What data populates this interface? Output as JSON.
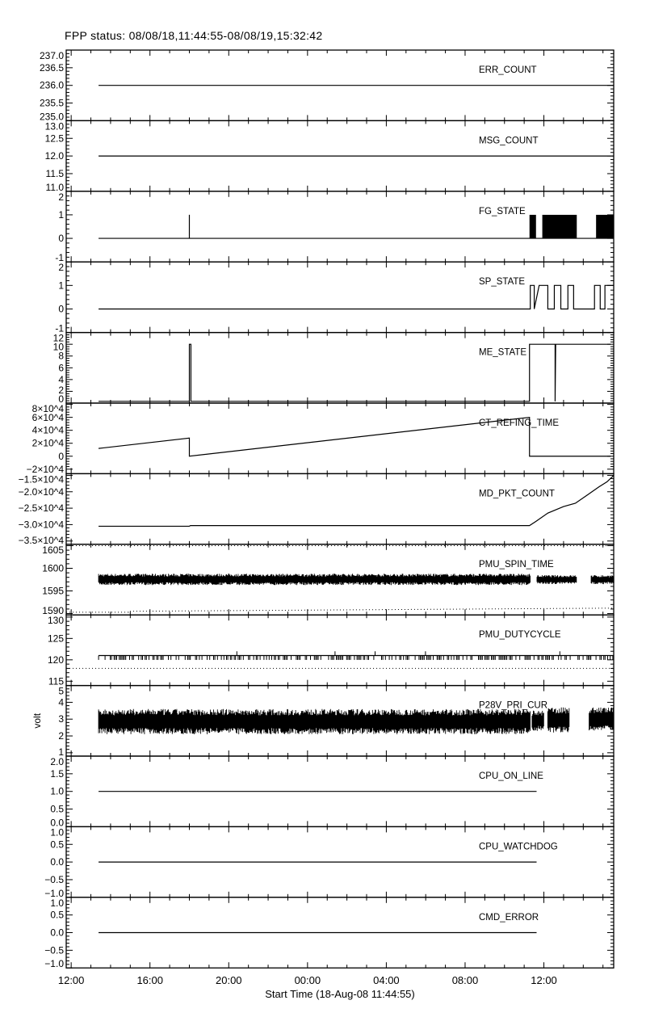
{
  "title": "FPP status: 08/08/18,11:44:55-08/08/19,15:32:42",
  "chart_data": {
    "type": "line",
    "layout": "13 stacked panels sharing a time axis",
    "x_unit": "hours since 18-Aug-08 00:00",
    "xlim": [
      11.748,
      39.545
    ],
    "xlabel": "Start Time (18-Aug-08 11:44:55)",
    "xticks": [
      {
        "v": 12,
        "t": "12:00"
      },
      {
        "v": 16,
        "t": "16:00"
      },
      {
        "v": 20,
        "t": "20:00"
      },
      {
        "v": 24,
        "t": "00:00"
      },
      {
        "v": 28,
        "t": "04:00"
      },
      {
        "v": 32,
        "t": "08:00"
      },
      {
        "v": 36,
        "t": "12:00"
      }
    ],
    "color": "#000000",
    "grid": false,
    "panels": [
      {
        "label": "ERR_COUNT",
        "ylim": [
          235,
          237
        ],
        "yticks": [
          {
            "v": 235,
            "t": "235.0"
          },
          {
            "v": 235.5,
            "t": "235.5"
          },
          {
            "v": 236,
            "t": "236.0"
          },
          {
            "v": 236.5,
            "t": "236.5"
          },
          {
            "v": 237,
            "t": "237.0"
          }
        ],
        "lines": [
          [
            [
              13.39,
              236
            ],
            [
              39.55,
              236
            ]
          ]
        ]
      },
      {
        "label": "MSG_COUNT",
        "ylim": [
          11,
          13
        ],
        "yticks": [
          {
            "v": 11,
            "t": "11.0"
          },
          {
            "v": 11.5,
            "t": "11.5"
          },
          {
            "v": 12,
            "t": "12.0"
          },
          {
            "v": 12.5,
            "t": "12.5"
          },
          {
            "v": 13,
            "t": "13.0"
          }
        ],
        "lines": [
          [
            [
              13.39,
              12
            ],
            [
              39.55,
              12
            ]
          ]
        ]
      },
      {
        "label": "FG_STATE",
        "ylim": [
          -1,
          2
        ],
        "yticks": [
          {
            "v": -1,
            "t": "-1"
          },
          {
            "v": 0,
            "t": "0"
          },
          {
            "v": 1,
            "t": "1"
          },
          {
            "v": 2,
            "t": "2"
          }
        ],
        "lines": [
          [
            [
              13.39,
              0
            ],
            [
              18.0,
              0
            ],
            [
              18.0,
              1
            ],
            [
              18.0,
              0
            ],
            [
              39.55,
              0
            ]
          ]
        ],
        "filled_blocks": [
          {
            "x": [
              35.27,
              35.6
            ],
            "y": [
              0,
              1
            ]
          },
          {
            "x": [
              35.92,
              37.67
            ],
            "y": [
              0,
              1
            ]
          },
          {
            "x": [
              38.65,
              39.55
            ],
            "y": [
              0,
              1
            ]
          }
        ]
      },
      {
        "label": "SP_STATE",
        "ylim": [
          -1,
          2
        ],
        "yticks": [
          {
            "v": -1,
            "t": "-1"
          },
          {
            "v": 0,
            "t": "0"
          },
          {
            "v": 1,
            "t": "1"
          },
          {
            "v": 2,
            "t": "2"
          }
        ],
        "lines": [
          [
            [
              13.39,
              0
            ],
            [
              35.31,
              0
            ],
            [
              35.31,
              1
            ],
            [
              35.51,
              1
            ],
            [
              35.51,
              0
            ],
            [
              35.76,
              1
            ],
            [
              36.2,
              1
            ],
            [
              36.2,
              0
            ],
            [
              36.53,
              0
            ],
            [
              36.53,
              1
            ],
            [
              36.86,
              1
            ],
            [
              36.86,
              0
            ],
            [
              37.22,
              0
            ],
            [
              37.22,
              1
            ],
            [
              37.51,
              1
            ],
            [
              37.51,
              0
            ],
            [
              38.57,
              0
            ],
            [
              38.57,
              1
            ],
            [
              38.86,
              1
            ],
            [
              38.86,
              0
            ],
            [
              39.1,
              0
            ],
            [
              39.1,
              1
            ],
            [
              39.55,
              1
            ]
          ]
        ]
      },
      {
        "label": "ME_STATE",
        "ylim": [
          0,
          12
        ],
        "yticks": [
          {
            "v": 0,
            "t": "0"
          },
          {
            "v": 2,
            "t": "2"
          },
          {
            "v": 4,
            "t": "4"
          },
          {
            "v": 6,
            "t": "6"
          },
          {
            "v": 8,
            "t": "8"
          },
          {
            "v": 10,
            "t": "10"
          },
          {
            "v": 12,
            "t": "12"
          }
        ],
        "lines": [
          [
            [
              13.39,
              0.3
            ],
            [
              18.0,
              0.3
            ],
            [
              18.0,
              10
            ],
            [
              18.08,
              10
            ],
            [
              18.08,
              0.3
            ],
            [
              35.27,
              0.3
            ],
            [
              35.27,
              10
            ],
            [
              36.57,
              10
            ],
            [
              36.57,
              0.3
            ],
            [
              36.6,
              10
            ],
            [
              39.4,
              10
            ]
          ]
        ]
      },
      {
        "label": "CT_REFING_TIME",
        "ylim": [
          -27000,
          82000
        ],
        "yticks": [
          {
            "v": -20000,
            "t": "−2×10^4"
          },
          {
            "v": 0,
            "t": "0"
          },
          {
            "v": 20000,
            "t": "2×10^4"
          },
          {
            "v": 40000,
            "t": "4×10^4"
          },
          {
            "v": 60000,
            "t": "6×10^4"
          },
          {
            "v": 80000,
            "t": "8×10^4"
          }
        ],
        "lines": [
          [
            [
              13.39,
              12000
            ],
            [
              18.0,
              28000
            ],
            [
              18.0,
              0
            ],
            [
              35.27,
              60000
            ],
            [
              35.27,
              0
            ],
            [
              39.4,
              0
            ]
          ]
        ]
      },
      {
        "label": "MD_PKT_COUNT",
        "ylim": [
          -36000,
          -14500
        ],
        "yticks": [
          {
            "v": -35000,
            "t": "−3.5×10^4"
          },
          {
            "v": -30000,
            "t": "−3.0×10^4"
          },
          {
            "v": -25000,
            "t": "−2.5×10^4"
          },
          {
            "v": -20000,
            "t": "−2.0×10^4"
          },
          {
            "v": -15000,
            "t": "−1.5×10^4"
          }
        ],
        "lines": [
          [
            [
              13.39,
              -30500
            ],
            [
              18.0,
              -30500
            ],
            [
              18.05,
              -30300
            ],
            [
              35.27,
              -30300
            ],
            [
              35.6,
              -29000
            ],
            [
              36.2,
              -26500
            ],
            [
              37.0,
              -24500
            ],
            [
              37.6,
              -23500
            ],
            [
              38.2,
              -21000
            ],
            [
              38.8,
              -18500
            ],
            [
              39.2,
              -17000
            ],
            [
              39.55,
              -15000
            ]
          ]
        ]
      },
      {
        "label": "PMU_SPIN_TIME",
        "ylim": [
          1589.7,
          1605.3
        ],
        "yticks": [
          {
            "v": 1590,
            "t": "1590"
          },
          {
            "v": 1595,
            "t": "1595"
          },
          {
            "v": 1600,
            "t": "1600"
          },
          {
            "v": 1605,
            "t": "1605"
          }
        ],
        "noise": [
          {
            "x": [
              13.39,
              35.3
            ],
            "band": [
              1596.3,
              1598.8
            ]
          },
          {
            "x": [
              35.65,
              37.67
            ],
            "band": [
              1596.5,
              1598.5
            ]
          },
          {
            "x": [
              38.4,
              39.55
            ],
            "band": [
              1596.5,
              1598.5
            ]
          }
        ],
        "dotted": [
          [
            [
              11.75,
              1605
            ],
            [
              39.55,
              1605
            ]
          ],
          [
            [
              11.75,
              1590.3
            ],
            [
              14.9,
              1590.3
            ],
            [
              14.9,
              1590.5
            ],
            [
              39.55,
              1591.2
            ]
          ]
        ]
      },
      {
        "label": "PMU_DUTYCYCLE",
        "ylim": [
          114,
          130.5
        ],
        "yticks": [
          {
            "v": 115,
            "t": "115"
          },
          {
            "v": 120,
            "t": "120"
          },
          {
            "v": 125,
            "t": "125"
          },
          {
            "v": 130,
            "t": "130"
          }
        ],
        "tick_series": {
          "x": [
            13.39,
            39.55
          ],
          "level": 121,
          "low": 120,
          "high": 122
        },
        "dotted": [
          [
            [
              11.75,
              118
            ],
            [
              39.55,
              118
            ]
          ]
        ]
      },
      {
        "label": "P28V_PRI_CUR",
        "ylabel": "volt",
        "ylim": [
          0.8,
          5
        ],
        "yticks": [
          {
            "v": 1,
            "t": "1"
          },
          {
            "v": 2,
            "t": "2"
          },
          {
            "v": 3,
            "t": "3"
          },
          {
            "v": 4,
            "t": "4"
          },
          {
            "v": 5,
            "t": "5"
          }
        ],
        "noise": [
          {
            "x": [
              13.39,
              35.3
            ],
            "band": [
              2.1,
              3.6
            ]
          },
          {
            "x": [
              35.4,
              36.0
            ],
            "band": [
              2.3,
              3.5
            ]
          },
          {
            "x": [
              36.2,
              37.3
            ],
            "band": [
              2.2,
              3.7
            ]
          },
          {
            "x": [
              38.3,
              39.55
            ],
            "band": [
              2.3,
              3.7
            ]
          }
        ]
      },
      {
        "label": "CPU_ON_LINE",
        "ylim": [
          0,
          2
        ],
        "yticks": [
          {
            "v": 0,
            "t": "0.0"
          },
          {
            "v": 0.5,
            "t": "0.5"
          },
          {
            "v": 1,
            "t": "1.0"
          },
          {
            "v": 1.5,
            "t": "1.5"
          },
          {
            "v": 2,
            "t": "2.0"
          }
        ],
        "lines": [
          [
            [
              13.39,
              1
            ],
            [
              35.63,
              1
            ]
          ]
        ]
      },
      {
        "label": "CPU_WATCHDOG",
        "ylim": [
          -1,
          1
        ],
        "yticks": [
          {
            "v": -1,
            "t": "−1.0"
          },
          {
            "v": -0.5,
            "t": "−0.5"
          },
          {
            "v": 0,
            "t": "0.0"
          },
          {
            "v": 0.5,
            "t": "0.5"
          },
          {
            "v": 1,
            "t": "1.0"
          }
        ],
        "lines": [
          [
            [
              13.39,
              0
            ],
            [
              35.63,
              0
            ]
          ]
        ]
      },
      {
        "label": "CMD_ERROR",
        "ylim": [
          -1,
          1
        ],
        "yticks": [
          {
            "v": -1,
            "t": "−1.0"
          },
          {
            "v": -0.5,
            "t": "−0.5"
          },
          {
            "v": 0,
            "t": "0.0"
          },
          {
            "v": 0.5,
            "t": "0.5"
          },
          {
            "v": 1,
            "t": "1.0"
          }
        ],
        "lines": [
          [
            [
              13.39,
              0
            ],
            [
              35.63,
              0
            ]
          ]
        ]
      }
    ]
  }
}
